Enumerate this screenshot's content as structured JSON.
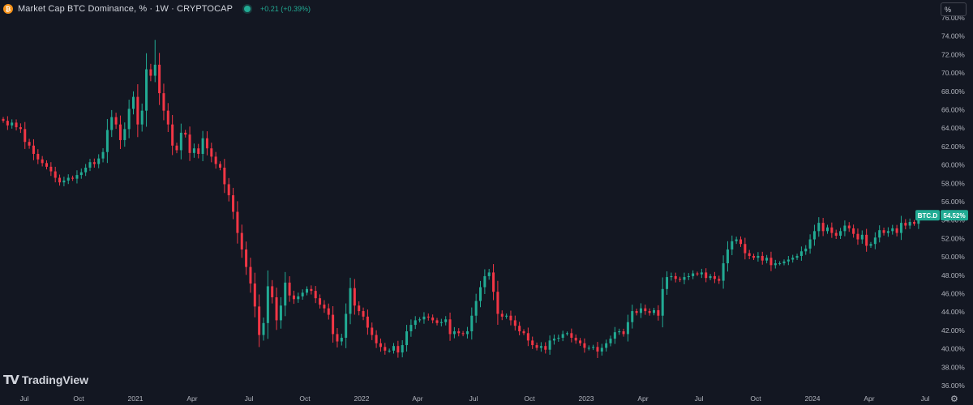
{
  "header": {
    "icon_letter": "₿",
    "title": "Market Cap BTC Dominance, % · 1W · CRYPTOCAP",
    "change": "+0.21 (+0.39%)"
  },
  "unit_button": "%",
  "branding": {
    "logo_mark": "TV",
    "logo_text": "TradingView"
  },
  "colors": {
    "background": "#131722",
    "up": "#22ab94",
    "down": "#f23645",
    "text": "#d1d4dc",
    "axis_text": "#b2b5be"
  },
  "icons": {
    "settings": "gear-icon"
  },
  "chart_data": {
    "type": "candlestick",
    "title": "Market Cap BTC Dominance, % · 1W · CRYPTOCAP",
    "ylim": [
      35,
      76
    ],
    "y_ticks": [
      "36.00%",
      "38.00%",
      "40.00%",
      "42.00%",
      "44.00%",
      "46.00%",
      "48.00%",
      "50.00%",
      "52.00%",
      "54.00%",
      "56.00%",
      "58.00%",
      "60.00%",
      "62.00%",
      "64.00%",
      "66.00%",
      "68.00%",
      "70.00%",
      "72.00%",
      "74.00%",
      "76.00%"
    ],
    "x_ticks": [
      "Jul",
      "Oct",
      "2021",
      "Apr",
      "Jul",
      "Oct",
      "2022",
      "Apr",
      "Jul",
      "Oct",
      "2023",
      "Apr",
      "Jul",
      "Oct",
      "2024",
      "Apr",
      "Jul"
    ],
    "last_label": {
      "symbol": "BTC.D",
      "value": "54.52%"
    },
    "closes": [
      64.8,
      64.3,
      64.6,
      64.1,
      63.9,
      62.5,
      62.1,
      61.2,
      60.6,
      60.2,
      59.8,
      59.3,
      58.6,
      58.1,
      58.3,
      58.6,
      58.5,
      58.9,
      59.2,
      59.7,
      60.3,
      60.1,
      60.7,
      61.4,
      63.8,
      65.2,
      64.4,
      62.7,
      63.9,
      66.1,
      67.4,
      64.4,
      65.9,
      70.4,
      69.7,
      70.9,
      67.8,
      65.9,
      64.4,
      62.1,
      61.6,
      63.5,
      63.3,
      61.3,
      61.8,
      61.2,
      62.9,
      61.8,
      60.9,
      60.1,
      59.7,
      57.9,
      56.7,
      54.9,
      52.6,
      50.8,
      48.9,
      47.1,
      44.6,
      41.5,
      42.8,
      46.8,
      45.6,
      43.1,
      44.7,
      47.2,
      45.8,
      45.4,
      45.7,
      46.1,
      46.5,
      46.3,
      45.5,
      44.8,
      44.4,
      43.7,
      41.6,
      40.8,
      41.2,
      43.8,
      46.6,
      44.7,
      44.1,
      43.5,
      42.3,
      41.5,
      40.6,
      40.2,
      39.8,
      39.8,
      40.3,
      39.6,
      40.4,
      41.9,
      42.6,
      43.1,
      43.2,
      43.5,
      43.4,
      43.1,
      42.8,
      42.9,
      43.2,
      41.6,
      41.9,
      41.7,
      41.6,
      41.9,
      43.6,
      45.2,
      46.7,
      47.9,
      48.3,
      46.2,
      43.8,
      43.5,
      43.6,
      43.1,
      42.5,
      41.9,
      41.7,
      40.9,
      40.4,
      40.1,
      40.3,
      39.9,
      40.9,
      41.1,
      41.2,
      41.6,
      41.7,
      41.2,
      40.9,
      40.6,
      40.1,
      40.1,
      40.2,
      39.7,
      40.1,
      40.6,
      41.1,
      41.8,
      41.9,
      41.6,
      42.9,
      44.1,
      43.9,
      44.4,
      44.1,
      43.9,
      44.2,
      43.6,
      46.5,
      47.8,
      47.9,
      47.6,
      47.5,
      47.8,
      47.9,
      48.2,
      48.1,
      48.3,
      47.7,
      47.9,
      47.6,
      47.4,
      49.3,
      50.8,
      51.7,
      51.9,
      51.4,
      50.4,
      50.1,
      49.9,
      50.1,
      49.6,
      49.9,
      49.1,
      49.3,
      49.3,
      49.5,
      49.7,
      49.9,
      50.1,
      50.6,
      50.9,
      51.9,
      52.8,
      53.7,
      52.8,
      53.2,
      52.6,
      52.3,
      52.8,
      53.4,
      53.1,
      52.5,
      51.9,
      52.4,
      51.2,
      51.4,
      52.1,
      52.9,
      52.6,
      52.8,
      53.1,
      52.6,
      53.7,
      53.4,
      53.8,
      53.6,
      54.3,
      54.5
    ],
    "wick_extremes": {
      "high": 73.6,
      "high_period": "2021-01",
      "low": 39.0,
      "low_period": "2022-10"
    }
  }
}
